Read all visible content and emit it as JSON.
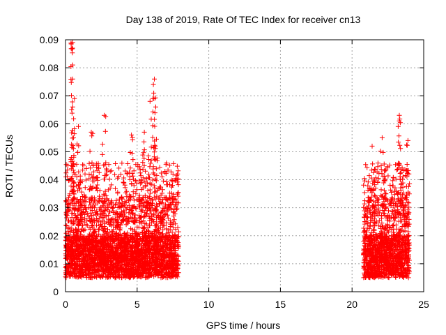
{
  "chart_data": {
    "type": "scatter",
    "title": "Day 138 of 2019, Rate Of TEC Index for receiver cn13",
    "xlabel": "GPS time / hours",
    "ylabel": "ROTI / TECUs",
    "xlim": [
      0,
      25
    ],
    "ylim": [
      0,
      0.09
    ],
    "x_ticks": [
      "0",
      "5",
      "10",
      "15",
      "20",
      "25"
    ],
    "y_ticks": [
      "0",
      "0.01",
      "0.02",
      "0.03",
      "0.04",
      "0.05",
      "0.06",
      "0.07",
      "0.08",
      "0.09"
    ],
    "grid": true,
    "legend": "none",
    "marker": "plus",
    "color": "#ff0000",
    "segments": [
      {
        "x_range": [
          0.0,
          7.9
        ],
        "typical_range": [
          0.005,
          0.02
        ],
        "peaks": [
          {
            "x": 0.5,
            "y": 0.089
          },
          {
            "x": 0.5,
            "y": 0.087
          },
          {
            "x": 0.5,
            "y": 0.081
          },
          {
            "x": 0.5,
            "y": 0.076
          },
          {
            "x": 0.5,
            "y": 0.066
          },
          {
            "x": 2.7,
            "y": 0.063
          },
          {
            "x": 6.2,
            "y": 0.076
          },
          {
            "x": 6.1,
            "y": 0.069
          },
          {
            "x": 5.9,
            "y": 0.068
          },
          {
            "x": 6.3,
            "y": 0.066
          },
          {
            "x": 4.6,
            "y": 0.056
          },
          {
            "x": 5.5,
            "y": 0.057
          },
          {
            "x": 1.8,
            "y": 0.057
          },
          {
            "x": 0.9,
            "y": 0.059
          }
        ]
      },
      {
        "x_range": [
          20.8,
          24.0
        ],
        "typical_range": [
          0.005,
          0.02
        ],
        "peaks": [
          {
            "x": 23.3,
            "y": 0.063
          },
          {
            "x": 23.3,
            "y": 0.061
          },
          {
            "x": 22.1,
            "y": 0.055
          },
          {
            "x": 21.4,
            "y": 0.052
          },
          {
            "x": 23.9,
            "y": 0.054
          }
        ]
      }
    ]
  }
}
